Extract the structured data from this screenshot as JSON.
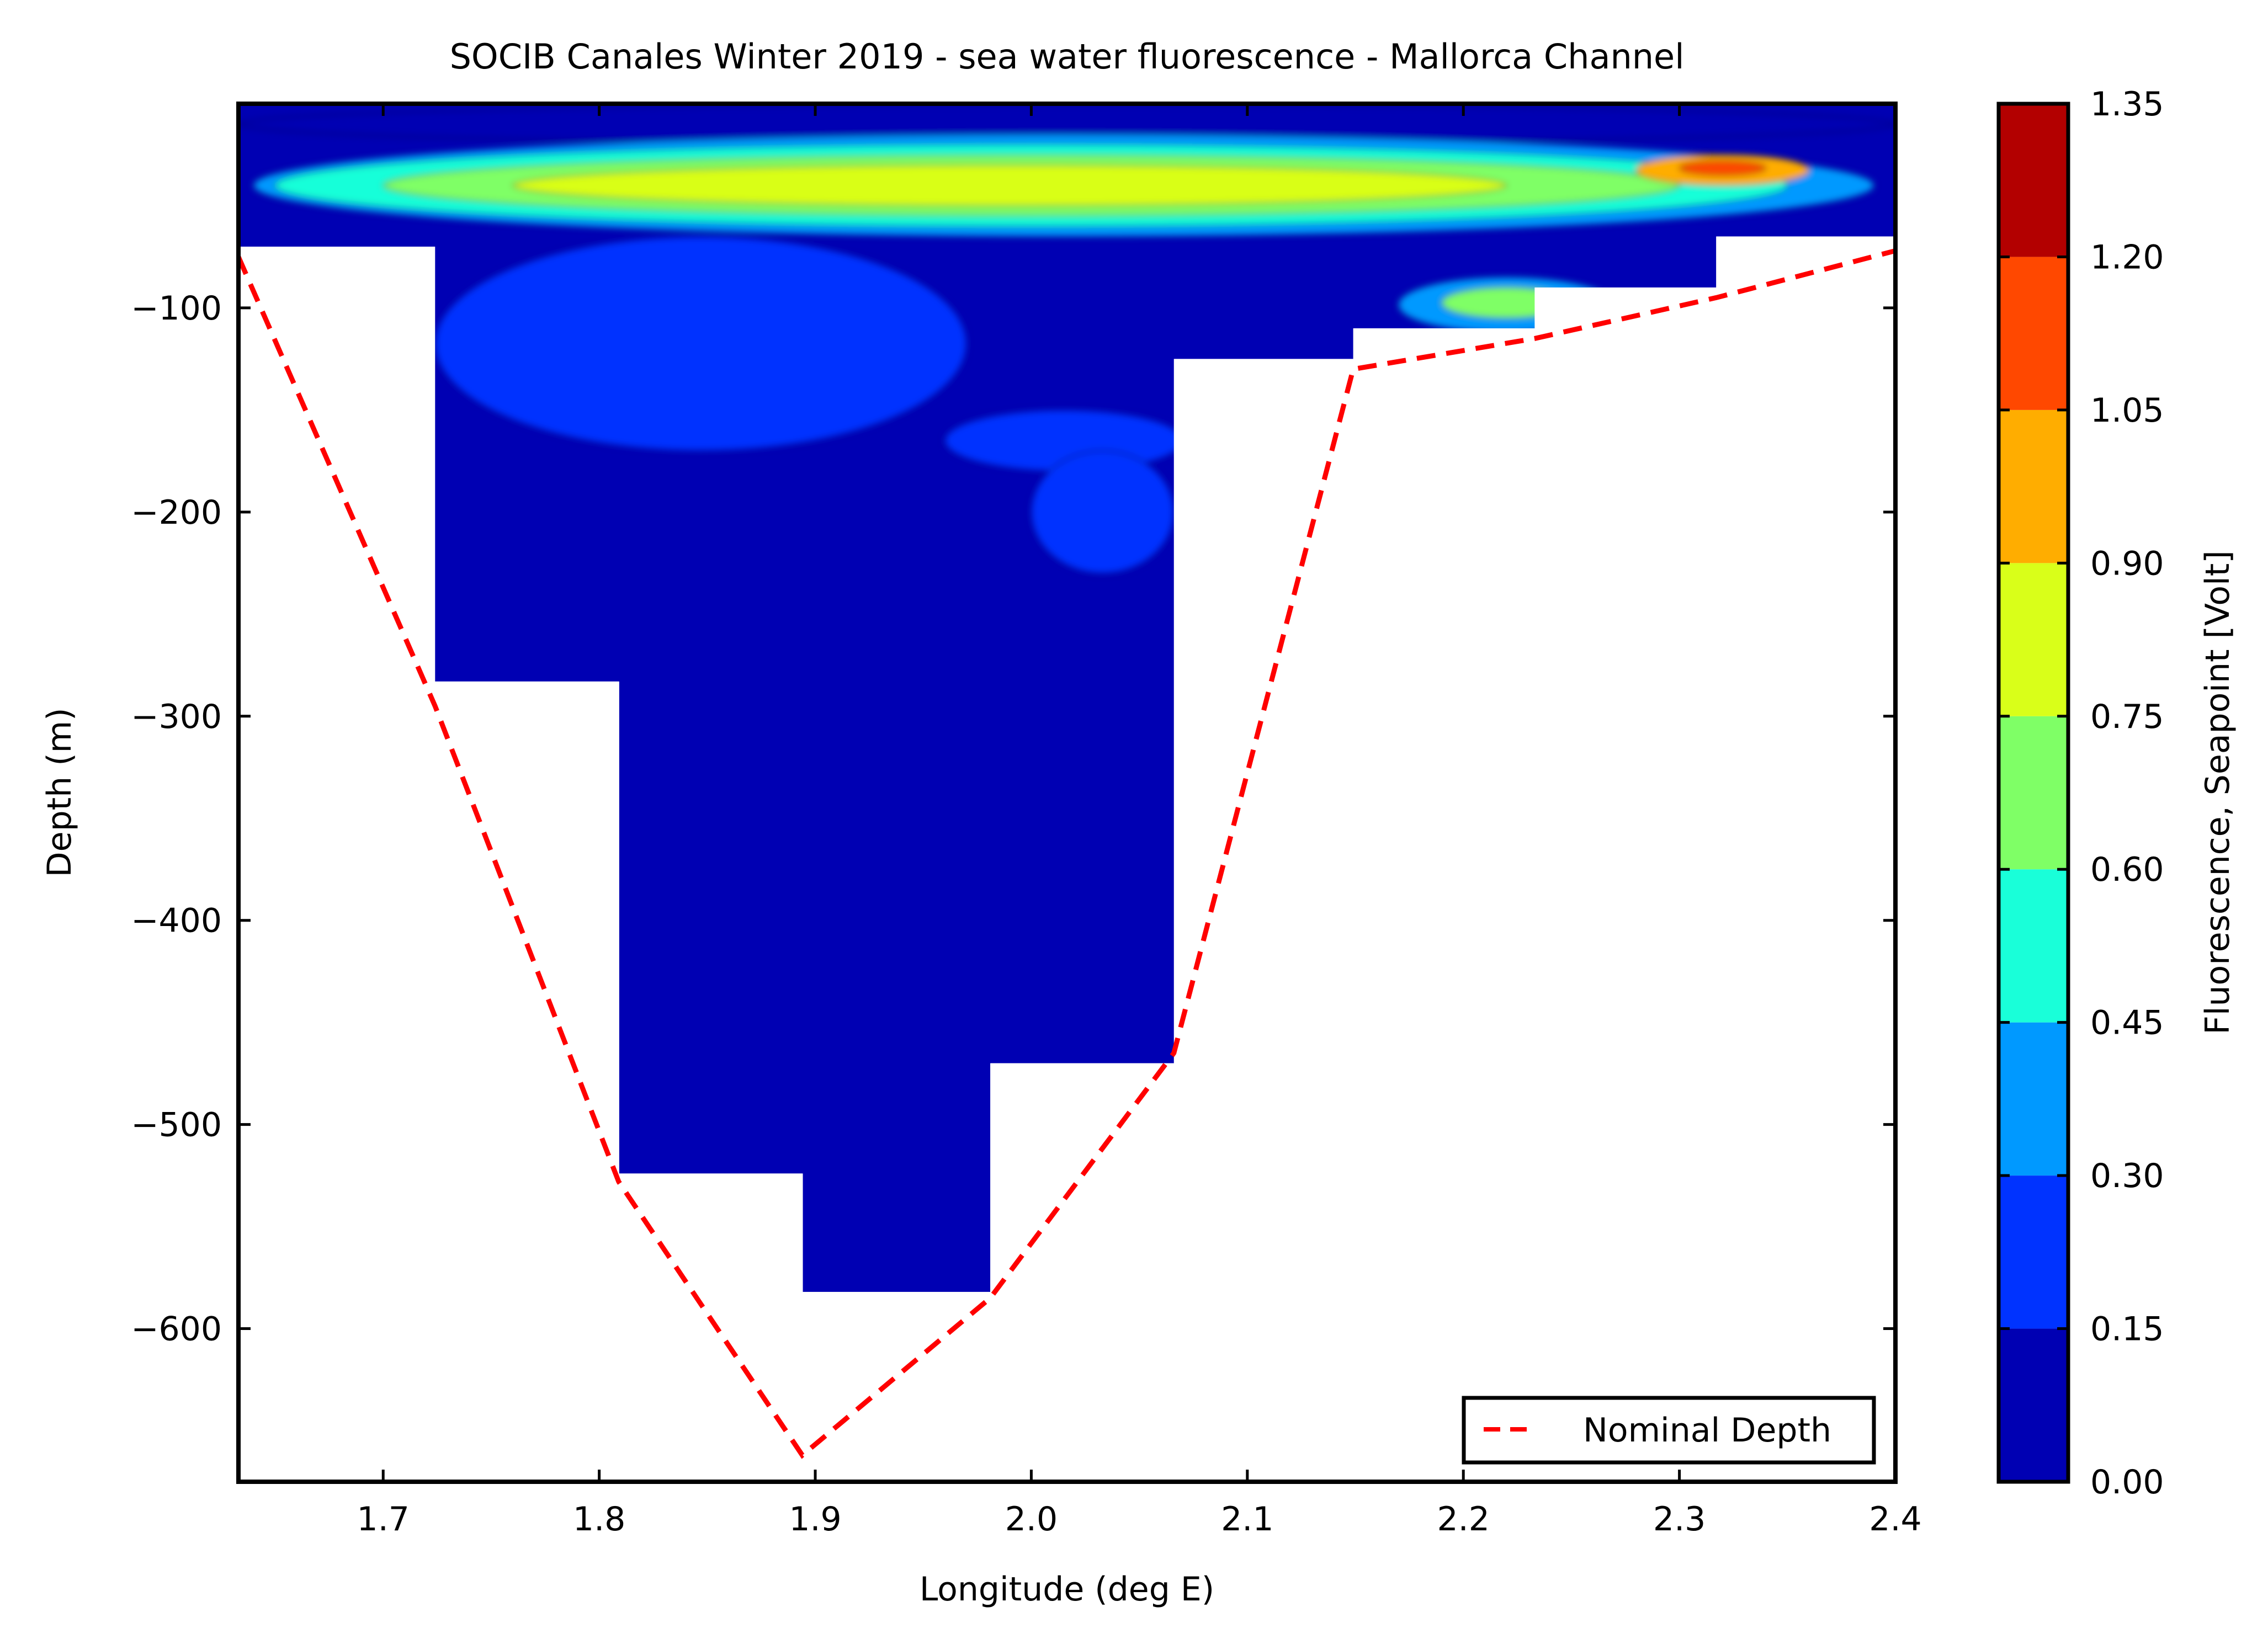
{
  "chart_data": {
    "type": "heatmap",
    "title": "SOCIB Canales Winter 2019 - sea water fluorescence  -  Mallorca Channel",
    "xlabel": "Longitude (deg E)",
    "ylabel": "Depth (m)",
    "xlim": [
      1.633,
      2.4
    ],
    "ylim": [
      -675,
      0
    ],
    "x_ticks": [
      1.7,
      1.8,
      1.9,
      2.0,
      2.1,
      2.2,
      2.3,
      2.4
    ],
    "x_tick_labels": [
      "1.7",
      "1.8",
      "1.9",
      "2.0",
      "2.1",
      "2.2",
      "2.3",
      "2.4"
    ],
    "y_ticks": [
      -100,
      -200,
      -300,
      -400,
      -500,
      -600
    ],
    "y_tick_labels": [
      "−100",
      "−200",
      "−300",
      "−400",
      "−500",
      "−600"
    ],
    "grid": false,
    "colorbar": {
      "label": "Fluorescence, Seapoint [Volt]",
      "levels": [
        0.0,
        0.15,
        0.3,
        0.45,
        0.6,
        0.75,
        0.9,
        1.05,
        1.2,
        1.35
      ],
      "tick_labels": [
        "0.00",
        "0.15",
        "0.30",
        "0.45",
        "0.60",
        "0.75",
        "0.90",
        "1.05",
        "1.20",
        "1.35"
      ],
      "colors": [
        "#0000b3",
        "#0033ff",
        "#0099ff",
        "#19ffd9",
        "#7fff66",
        "#d9ff19",
        "#ffad00",
        "#ff4800",
        "#b30000"
      ]
    },
    "data_columns": [
      {
        "x0": 1.633,
        "x1": 1.724,
        "bottom": -70
      },
      {
        "x0": 1.724,
        "x1": 1.809,
        "bottom": -283
      },
      {
        "x0": 1.809,
        "x1": 1.894,
        "bottom": -524
      },
      {
        "x0": 1.894,
        "x1": 1.981,
        "bottom": -582
      },
      {
        "x0": 1.981,
        "x1": 2.066,
        "bottom": -470
      },
      {
        "x0": 2.066,
        "x1": 2.149,
        "bottom": -125
      },
      {
        "x0": 2.149,
        "x1": 2.233,
        "bottom": -110
      },
      {
        "x0": 2.233,
        "x1": 2.317,
        "bottom": -90
      },
      {
        "x0": 2.317,
        "x1": 2.4,
        "bottom": -65
      }
    ],
    "field_features": [
      {
        "x0": 1.633,
        "x1": 2.4,
        "ytop": 0,
        "ybot": -20,
        "level": 0.05
      },
      {
        "x0": 1.64,
        "x1": 2.39,
        "ytop": -15,
        "ybot": -65,
        "level": 0.35
      },
      {
        "x0": 1.65,
        "x1": 2.35,
        "ytop": -20,
        "ybot": -60,
        "level": 0.5
      },
      {
        "x0": 1.7,
        "x1": 2.3,
        "ytop": -25,
        "ybot": -55,
        "level": 0.65
      },
      {
        "x0": 1.76,
        "x1": 2.22,
        "ytop": -30,
        "ybot": -50,
        "level": 0.8
      },
      {
        "x0": 2.28,
        "x1": 2.36,
        "ytop": -25,
        "ybot": -40,
        "level": 0.95
      },
      {
        "x0": 2.3,
        "x1": 2.34,
        "ytop": -28,
        "ybot": -35,
        "level": 1.1
      },
      {
        "x0": 1.75,
        "x1": 1.9,
        "ytop": -95,
        "ybot": -150,
        "level": 0.35
      },
      {
        "x0": 1.77,
        "x1": 1.87,
        "ytop": -108,
        "ybot": -138,
        "level": 0.5
      },
      {
        "x0": 1.79,
        "x1": 1.85,
        "ytop": -115,
        "ybot": -132,
        "level": 0.7
      },
      {
        "x0": 1.8,
        "x1": 1.84,
        "ytop": -120,
        "ybot": -128,
        "level": 0.9
      },
      {
        "x0": 2.17,
        "x1": 2.27,
        "ytop": -85,
        "ybot": -112,
        "level": 0.4
      },
      {
        "x0": 2.19,
        "x1": 2.25,
        "ytop": -90,
        "ybot": -105,
        "level": 0.65
      },
      {
        "x0": 1.96,
        "x1": 2.07,
        "ytop": -150,
        "ybot": -180,
        "level": 0.2
      },
      {
        "x0": 1.724,
        "x1": 1.97,
        "ytop": -65,
        "ybot": -170,
        "level": 0.2
      },
      {
        "x0": 2.0,
        "x1": 2.066,
        "ytop": -170,
        "ybot": -230,
        "level": 0.2
      }
    ],
    "series": [
      {
        "name": "Nominal Depth",
        "style": "dashed",
        "color": "#ff0000",
        "x": [
          1.633,
          1.724,
          1.809,
          1.894,
          1.981,
          2.066,
          2.149,
          2.233,
          2.317,
          2.4
        ],
        "y": [
          -75,
          -295,
          -528,
          -662,
          -585,
          -465,
          -130,
          -115,
          -95,
          -72
        ]
      }
    ],
    "legend": {
      "position": "lower-right",
      "entries": [
        "Nominal Depth"
      ]
    }
  }
}
